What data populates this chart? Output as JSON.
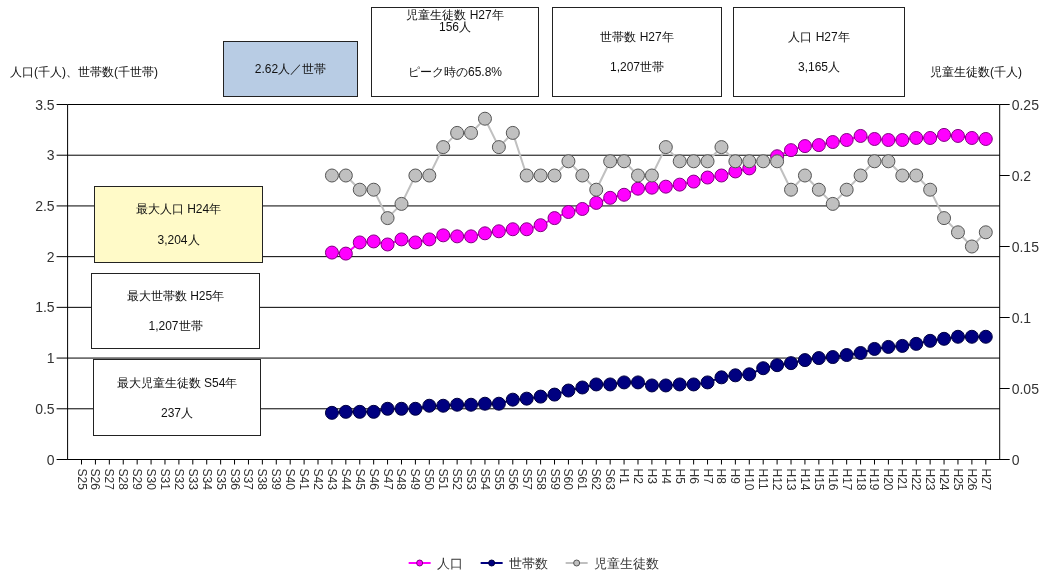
{
  "chart_data": {
    "type": "line",
    "ylabel": "人口(千人)、世帯数(千世帯)",
    "y2label": "児童生徒数(千人)",
    "annotations": [
      "2.62人／世帯",
      "児童生徒数 H27年",
      "156人",
      "ピーク時の65.8%",
      "世帯数 H27年",
      "1,207世帯",
      "人口 H27年",
      "3,165人",
      "最大人口 H24年",
      "3,204人",
      "最大世帯数 H25年",
      "1,207世帯",
      "最大児童生徒数 S54年",
      "237人"
    ],
    "categories": [
      "S25",
      "S26",
      "S27",
      "S28",
      "S29",
      "S30",
      "S31",
      "S32",
      "S33",
      "S34",
      "S35",
      "S36",
      "S37",
      "S38",
      "S39",
      "S40",
      "S41",
      "S42",
      "S43",
      "S44",
      "S45",
      "S46",
      "S47",
      "S48",
      "S49",
      "S50",
      "S51",
      "S52",
      "S53",
      "S54",
      "S55",
      "S56",
      "S57",
      "S58",
      "S59",
      "S60",
      "S61",
      "S62",
      "S63",
      "H1",
      "H2",
      "H3",
      "H4",
      "H5",
      "H6",
      "H7",
      "H8",
      "H9",
      "H10",
      "H11",
      "H12",
      "H13",
      "H14",
      "H15",
      "H16",
      "H17",
      "H18",
      "H19",
      "H20",
      "H21",
      "H22",
      "H23",
      "H24",
      "H25",
      "H26",
      "H27"
    ],
    "series": [
      {
        "name": "人口",
        "color": "#ff00ff",
        "values": [
          null,
          null,
          null,
          null,
          null,
          null,
          null,
          null,
          null,
          null,
          null,
          null,
          null,
          null,
          null,
          null,
          null,
          null,
          2.04,
          2.03,
          2.14,
          2.15,
          2.12,
          2.17,
          2.14,
          2.17,
          2.21,
          2.2,
          2.2,
          2.23,
          2.25,
          2.27,
          2.27,
          2.31,
          2.38,
          2.44,
          2.47,
          2.53,
          2.58,
          2.61,
          2.67,
          2.68,
          2.69,
          2.71,
          2.74,
          2.78,
          2.8,
          2.84,
          2.87,
          null,
          2.99,
          3.05,
          3.09,
          3.1,
          3.13,
          3.15,
          3.19,
          3.16,
          3.15,
          3.15,
          3.17,
          3.17,
          3.2,
          3.19,
          3.17,
          3.16
        ]
      },
      {
        "name": "世帯数",
        "color": "#000080",
        "values": [
          null,
          null,
          null,
          null,
          null,
          null,
          null,
          null,
          null,
          null,
          null,
          null,
          null,
          null,
          null,
          null,
          null,
          null,
          0.46,
          0.47,
          0.47,
          0.47,
          0.5,
          0.5,
          0.5,
          0.53,
          0.53,
          0.54,
          0.54,
          0.55,
          0.55,
          0.59,
          0.6,
          0.62,
          0.64,
          0.68,
          0.71,
          0.74,
          0.74,
          0.76,
          0.76,
          0.73,
          0.73,
          0.74,
          0.74,
          0.76,
          0.81,
          0.83,
          0.84,
          0.9,
          0.93,
          0.95,
          0.98,
          1.0,
          1.01,
          1.03,
          1.05,
          1.09,
          1.11,
          1.12,
          1.14,
          1.17,
          1.19,
          1.21,
          1.21,
          1.21
        ]
      },
      {
        "name": "児童生徒数",
        "color": "#c0c0c0",
        "axis": "y2",
        "values": [
          null,
          null,
          null,
          null,
          null,
          null,
          null,
          null,
          null,
          null,
          null,
          null,
          null,
          null,
          null,
          null,
          null,
          null,
          0.2,
          0.2,
          0.19,
          0.19,
          0.17,
          0.18,
          0.2,
          0.2,
          0.22,
          0.23,
          0.23,
          0.24,
          0.22,
          0.23,
          0.2,
          0.2,
          0.2,
          0.21,
          0.2,
          0.19,
          0.21,
          0.21,
          0.2,
          0.2,
          0.22,
          0.21,
          0.21,
          0.21,
          0.22,
          0.21,
          0.21,
          0.21,
          0.21,
          0.19,
          0.2,
          0.19,
          0.18,
          0.19,
          0.2,
          0.21,
          0.21,
          0.2,
          0.2,
          0.19,
          0.17,
          0.16,
          0.15,
          0.16
        ]
      }
    ],
    "ylim": [
      0,
      3.5
    ],
    "yticks": [
      0,
      0.5,
      1,
      1.5,
      2,
      2.5,
      3,
      3.5
    ],
    "y2lim": [
      0,
      0.25
    ],
    "y2ticks": [
      0,
      0.05,
      0.1,
      0.15,
      0.2,
      0.25
    ],
    "grid": "y",
    "legend": "bottom",
    "marker": "circle",
    "line_style": "solid"
  }
}
